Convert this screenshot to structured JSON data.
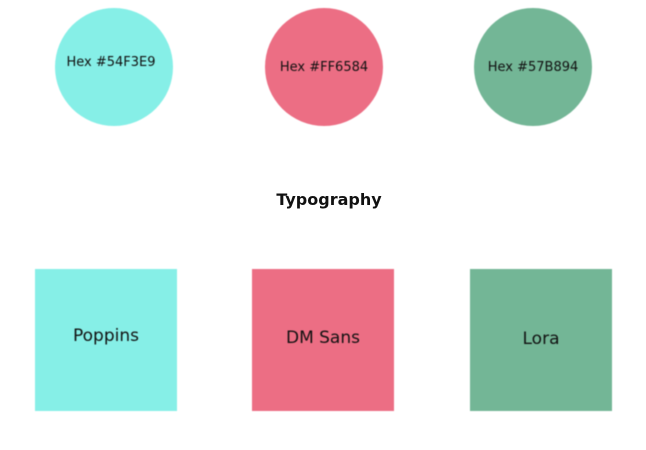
{
  "colors": [
    {
      "label": "Hex #54F3E9",
      "fill": "#86EFE7"
    },
    {
      "label": "Hex #FF6584",
      "fill": "#EC6E84"
    },
    {
      "label": "Hex #57B894",
      "fill": "#73B696"
    }
  ],
  "section_title": "Typography",
  "fonts": [
    {
      "label": "Poppins",
      "fill": "#86EFE7"
    },
    {
      "label": "DM Sans",
      "fill": "#EC6E84"
    },
    {
      "label": "Lora",
      "fill": "#73B696"
    }
  ]
}
